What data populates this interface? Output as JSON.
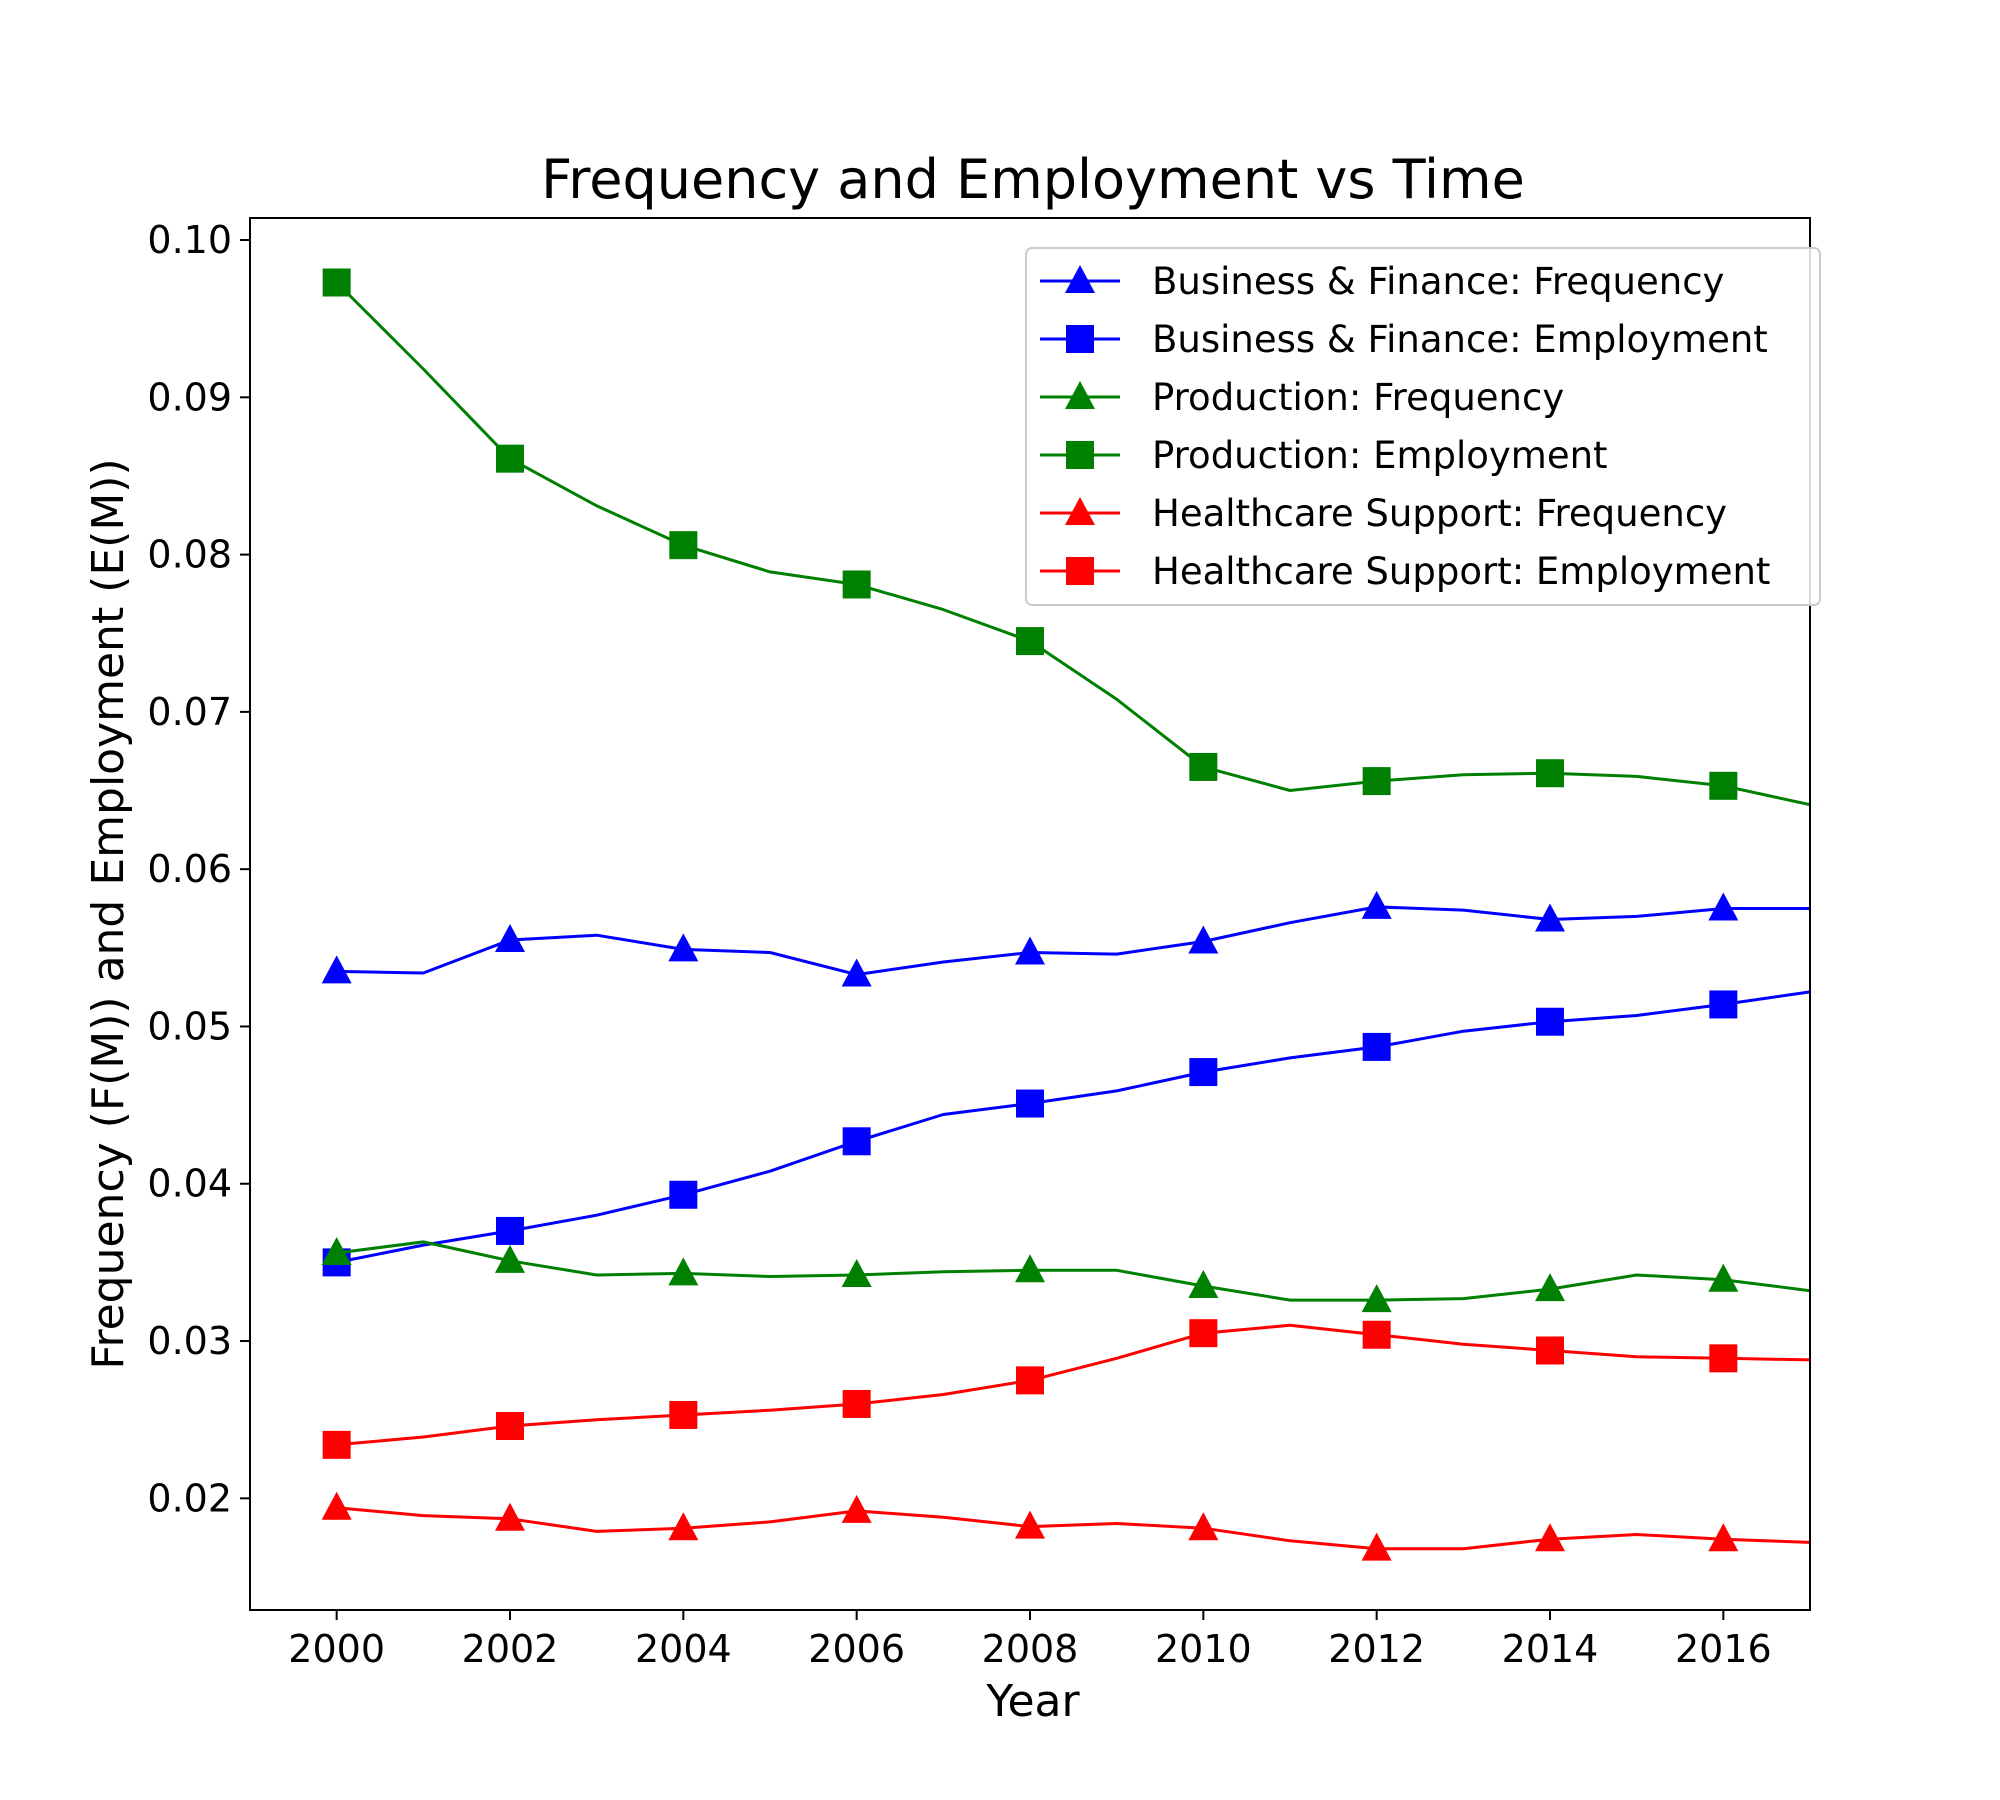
{
  "chart_data": {
    "type": "line",
    "title": "Frequency and Employment vs Time",
    "xlabel": "Year",
    "ylabel": "Frequency (F(M)) and Employment (E(M))",
    "xlim": [
      1999,
      2017
    ],
    "ylim": [
      0.0129,
      0.1014
    ],
    "xticks": [
      2000,
      2002,
      2004,
      2006,
      2008,
      2010,
      2012,
      2014,
      2016
    ],
    "yticks": [
      0.02,
      0.03,
      0.04,
      0.05,
      0.06,
      0.07,
      0.08,
      0.09,
      0.1
    ],
    "ytick_labels": [
      "0.02",
      "0.03",
      "0.04",
      "0.05",
      "0.06",
      "0.07",
      "0.08",
      "0.09",
      "0.10"
    ],
    "grid": false,
    "legend_position": "top-right",
    "x": [
      2000,
      2001,
      2002,
      2003,
      2004,
      2005,
      2006,
      2007,
      2008,
      2009,
      2010,
      2011,
      2012,
      2013,
      2014,
      2015,
      2016,
      2017
    ],
    "series": [
      {
        "name": "Business & Finance: Frequency",
        "color": "#0000ff",
        "marker": "triangle",
        "values": [
          0.0535,
          0.0534,
          0.0555,
          0.0558,
          0.0549,
          0.0547,
          0.0533,
          0.0541,
          0.0547,
          0.0546,
          0.0554,
          0.0566,
          0.0576,
          0.0574,
          0.0568,
          0.057,
          0.0575,
          0.0575
        ]
      },
      {
        "name": "Business & Finance: Employment",
        "color": "#0000ff",
        "marker": "square",
        "values": [
          0.035,
          0.0361,
          0.037,
          0.038,
          0.0393,
          0.0408,
          0.0427,
          0.0444,
          0.0451,
          0.0459,
          0.0471,
          0.048,
          0.0487,
          0.0497,
          0.0503,
          0.0507,
          0.0514,
          0.0522
        ]
      },
      {
        "name": "Production: Frequency",
        "color": "#008000",
        "marker": "triangle",
        "values": [
          0.0356,
          0.0363,
          0.0351,
          0.0342,
          0.0343,
          0.0341,
          0.0342,
          0.0344,
          0.0345,
          0.0345,
          0.0335,
          0.0326,
          0.0326,
          0.0327,
          0.0333,
          0.0342,
          0.0339,
          0.0332
        ]
      },
      {
        "name": "Production: Employment",
        "color": "#008000",
        "marker": "square",
        "values": [
          0.0973,
          0.0918,
          0.0861,
          0.0831,
          0.0806,
          0.0789,
          0.0781,
          0.0765,
          0.0745,
          0.0708,
          0.0665,
          0.065,
          0.0656,
          0.066,
          0.0661,
          0.0659,
          0.0653,
          0.0641
        ]
      },
      {
        "name": "Healthcare Support: Frequency",
        "color": "#ff0000",
        "marker": "triangle",
        "values": [
          0.0194,
          0.0189,
          0.0187,
          0.0179,
          0.0181,
          0.0185,
          0.0192,
          0.0188,
          0.0182,
          0.0184,
          0.0181,
          0.0173,
          0.0168,
          0.0168,
          0.0174,
          0.0177,
          0.0174,
          0.0172
        ]
      },
      {
        "name": "Healthcare Support: Employment",
        "color": "#ff0000",
        "marker": "square",
        "values": [
          0.0234,
          0.0239,
          0.0246,
          0.025,
          0.0253,
          0.0256,
          0.026,
          0.0266,
          0.0275,
          0.0289,
          0.0305,
          0.031,
          0.0304,
          0.0298,
          0.0294,
          0.029,
          0.0289,
          0.0288
        ]
      }
    ]
  }
}
